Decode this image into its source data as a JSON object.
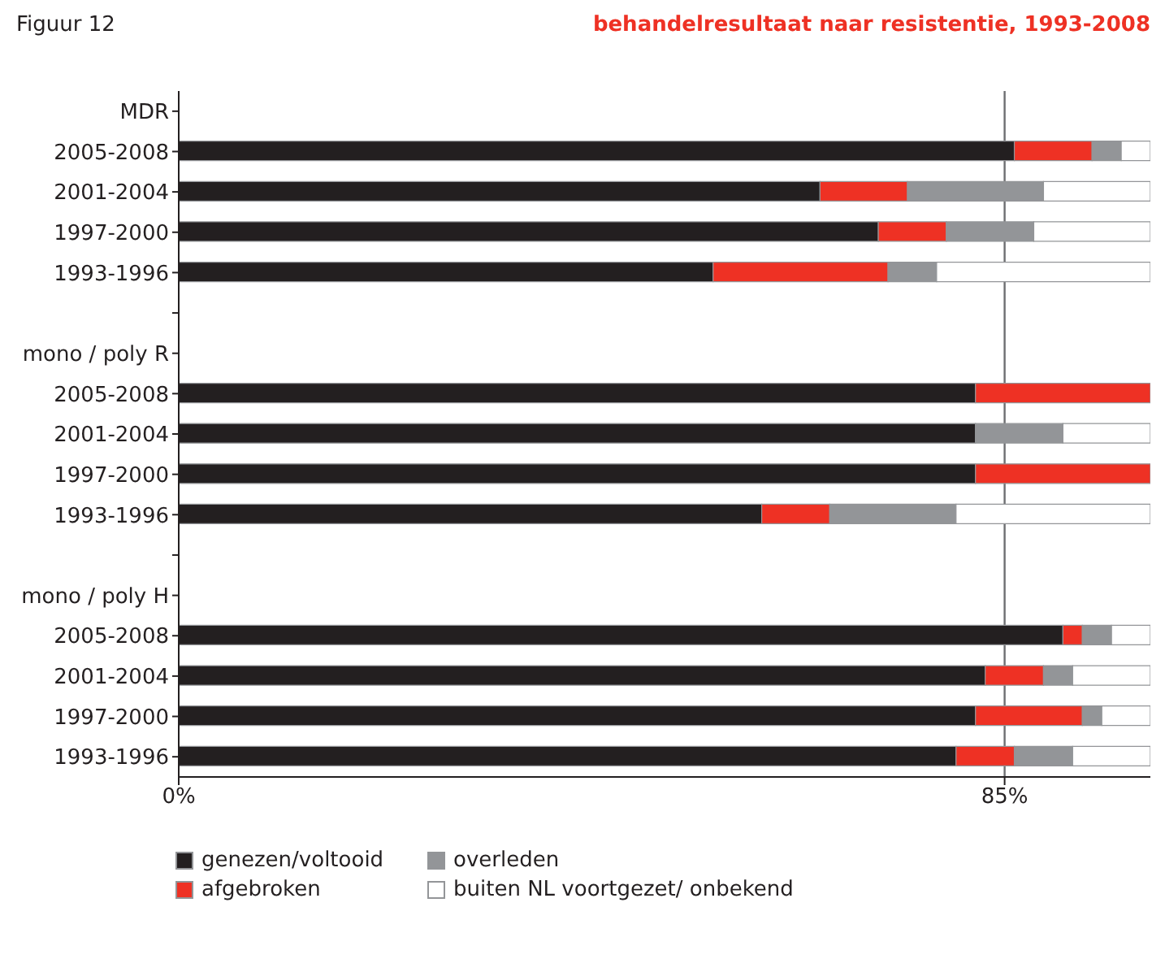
{
  "chart_data": {
    "type": "bar",
    "orientation": "horizontal",
    "stacked": true,
    "title": "behandelresultaat naar resistentie, 1993-2008",
    "annotations": [
      "Figuur 12"
    ],
    "categories": [
      "MDR",
      "2005-2008",
      "2001-2004",
      "1997-2000",
      "1993-1996",
      null,
      "mono / poly R",
      "2005-2008",
      "2001-2004",
      "1997-2000",
      "1993-1996",
      null,
      "mono / poly H",
      "2005-2008",
      "2001-2004",
      "1997-2000",
      "1993-1996"
    ],
    "series": [
      {
        "name": "genezen/voltooid",
        "color": "#231f20",
        "values": [
          null,
          86,
          66,
          72,
          55,
          null,
          null,
          82,
          82,
          82,
          60,
          null,
          null,
          91,
          83,
          82,
          80
        ]
      },
      {
        "name": "afgebroken",
        "color": "#ee3124",
        "values": [
          null,
          8,
          9,
          7,
          18,
          null,
          null,
          18,
          0,
          18,
          7,
          null,
          null,
          2,
          6,
          11,
          6
        ]
      },
      {
        "name": "overleden",
        "color": "#939598",
        "values": [
          null,
          3,
          14,
          9,
          5,
          null,
          null,
          0,
          9,
          0,
          13,
          null,
          null,
          3,
          3,
          2,
          6
        ]
      },
      {
        "name": "buiten NL voortgezet/ onbekend",
        "color": "#ffffff",
        "values": [
          null,
          3,
          11,
          12,
          22,
          null,
          null,
          0,
          9,
          0,
          20,
          null,
          null,
          4,
          8,
          5,
          8
        ]
      }
    ],
    "xlim": [
      0,
      100
    ],
    "xticks": [
      {
        "value": 0,
        "label": "0%"
      },
      {
        "value": 85,
        "label": "85%"
      }
    ],
    "grid": "x",
    "legend": "bottom left"
  }
}
